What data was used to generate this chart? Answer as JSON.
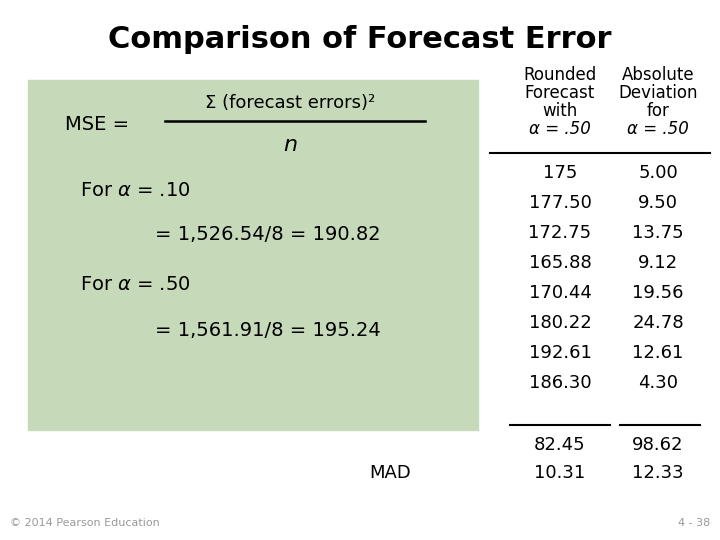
{
  "title": "Comparison of Forecast Error",
  "bg_color": "#ffffff",
  "green_box_color": "#c6d9b8",
  "numerator_text": "Σ (forecast errors)²",
  "col_header1_lines": [
    "Rounded",
    "Forecast",
    "with",
    "α = .50"
  ],
  "col_header2_lines": [
    "Absolute",
    "Deviation",
    "for",
    "α = .50"
  ],
  "col1_values": [
    "175",
    "177.50",
    "172.75",
    "165.88",
    "170.44",
    "180.22",
    "192.61",
    "186.30"
  ],
  "col2_values": [
    "5.00",
    "9.50",
    "13.75",
    "9.12",
    "19.56",
    "24.78",
    "12.61",
    "4.30"
  ],
  "col1_sum": "82.45",
  "col2_sum": "98.62",
  "col1_mad": "10.31",
  "col2_mad": "12.33",
  "copyright": "© 2014 Pearson Education",
  "page": "4 - 38",
  "title_fontsize": 22,
  "body_fontsize": 12
}
